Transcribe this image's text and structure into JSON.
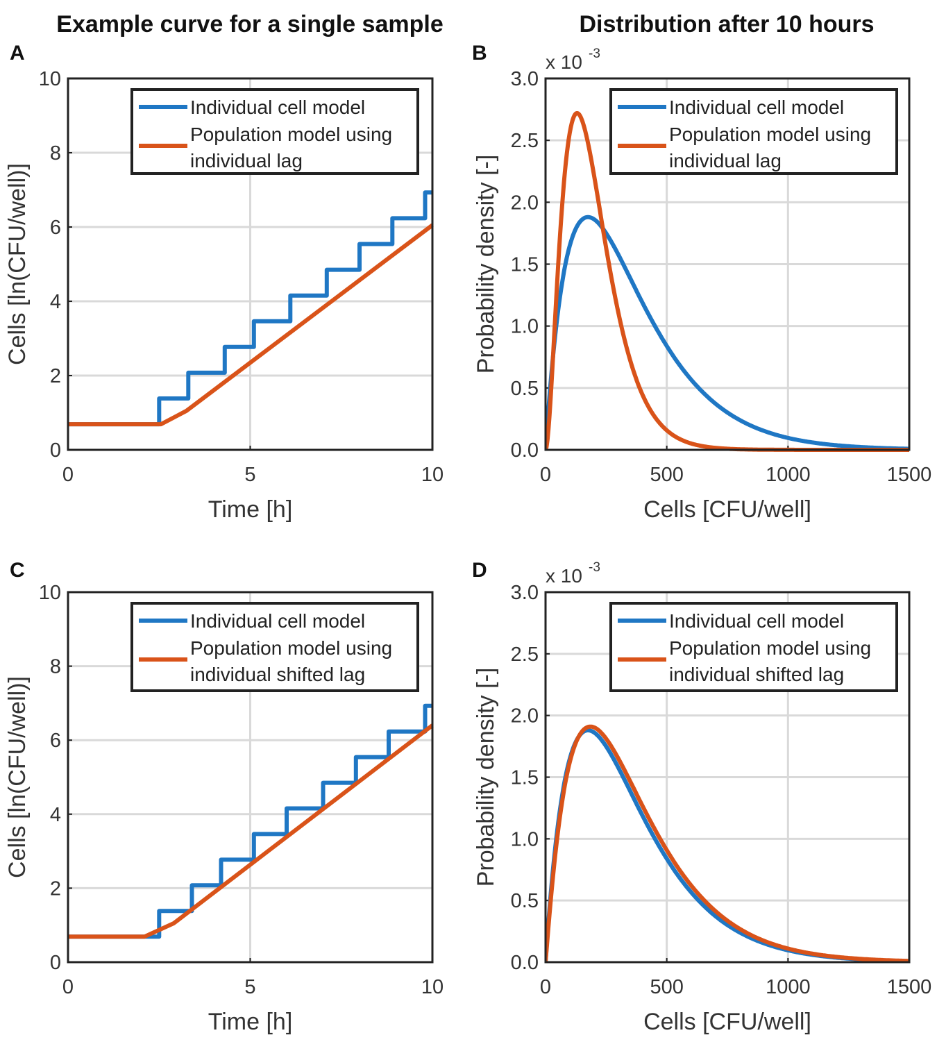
{
  "titles": {
    "left": "Example curve for a single sample",
    "right": "Distribution after 10 hours"
  },
  "legend_labels": {
    "individual": "Individual cell model",
    "population_lines": [
      "Population model using",
      "individual lag"
    ],
    "population_shifted_lines": [
      "Population model using",
      "individual shifted lag"
    ]
  },
  "colors": {
    "blue": "#1f77c4",
    "orange": "#d95319"
  },
  "chart_data": [
    {
      "id": "A",
      "type": "line",
      "panel_label": "A",
      "xlabel": "Time [h]",
      "ylabel": "Cells [ln(CFU/well)]",
      "xlim": [
        0,
        10
      ],
      "ylim": [
        0,
        10
      ],
      "xticks": [
        "0",
        "5",
        "10"
      ],
      "yticks": [
        "0",
        "2",
        "4",
        "6",
        "8",
        "10"
      ],
      "grid": true,
      "legend_position": "top-right",
      "series": [
        {
          "name": "Individual cell model",
          "color": "#1f77c4",
          "kind": "steps",
          "start": 0.69,
          "steps": [
            2.5,
            3.3,
            4.3,
            5.1,
            6.1,
            7.1,
            8.0,
            8.9,
            9.8
          ],
          "end_x": 10,
          "end_value": 6.65
        },
        {
          "name": "Population model using individual lag",
          "color": "#d95319",
          "kind": "line",
          "x": [
            0,
            2.55,
            3.25,
            10
          ],
          "y": [
            0.69,
            0.69,
            1.05,
            6.05
          ]
        }
      ]
    },
    {
      "id": "B",
      "type": "line",
      "panel_label": "B",
      "xlabel": "Cells [CFU/well]",
      "ylabel": "Probability density [-]",
      "exponent_base": "x 10",
      "exponent_power": "-3",
      "xlim": [
        0,
        1500
      ],
      "ylim": [
        0,
        3
      ],
      "xticks": [
        "0",
        "500",
        "1000",
        "1500"
      ],
      "yticks": [
        "0.0",
        "0.5",
        "1.0",
        "1.5",
        "2.0",
        "2.5",
        "3.0"
      ],
      "grid": true,
      "legend_position": "top-right",
      "series": [
        {
          "name": "Individual cell model",
          "color": "#1f77c4",
          "kind": "gamma",
          "shape": 2.0,
          "mode": 175,
          "peak": 1.88
        },
        {
          "name": "Population model using individual lag",
          "color": "#d95319",
          "kind": "gamma",
          "shape": 2.9,
          "mode": 130,
          "peak": 2.72
        }
      ]
    },
    {
      "id": "C",
      "type": "line",
      "panel_label": "C",
      "xlabel": "Time [h]",
      "ylabel": "Cells [ln(CFU/well)]",
      "xlim": [
        0,
        10
      ],
      "ylim": [
        0,
        10
      ],
      "xticks": [
        "0",
        "5",
        "10"
      ],
      "yticks": [
        "0",
        "2",
        "4",
        "6",
        "8",
        "10"
      ],
      "grid": true,
      "legend_position": "top-right",
      "series": [
        {
          "name": "Individual cell model",
          "color": "#1f77c4",
          "kind": "steps",
          "start": 0.69,
          "steps": [
            2.5,
            3.4,
            4.2,
            5.1,
            6.0,
            7.0,
            7.9,
            8.8,
            9.8
          ],
          "end_x": 10,
          "end_value": 6.65
        },
        {
          "name": "Population model using individual shifted lag",
          "color": "#d95319",
          "kind": "line",
          "x": [
            0,
            2.1,
            2.9,
            10
          ],
          "y": [
            0.69,
            0.69,
            1.05,
            6.4
          ]
        }
      ]
    },
    {
      "id": "D",
      "type": "line",
      "panel_label": "D",
      "xlabel": "Cells [CFU/well]",
      "ylabel": "Probability density [-]",
      "exponent_base": "x 10",
      "exponent_power": "-3",
      "xlim": [
        0,
        1500
      ],
      "ylim": [
        0,
        3
      ],
      "xticks": [
        "0",
        "500",
        "1000",
        "1500"
      ],
      "yticks": [
        "0.0",
        "0.5",
        "1.0",
        "1.5",
        "2.0",
        "2.5",
        "3.0"
      ],
      "grid": true,
      "legend_position": "top-right",
      "series": [
        {
          "name": "Individual cell model",
          "color": "#1f77c4",
          "kind": "gamma",
          "shape": 2.0,
          "mode": 175,
          "peak": 1.88
        },
        {
          "name": "Population model using individual shifted lag",
          "color": "#d95319",
          "kind": "gamma",
          "shape": 2.05,
          "mode": 185,
          "peak": 1.91
        }
      ]
    }
  ]
}
